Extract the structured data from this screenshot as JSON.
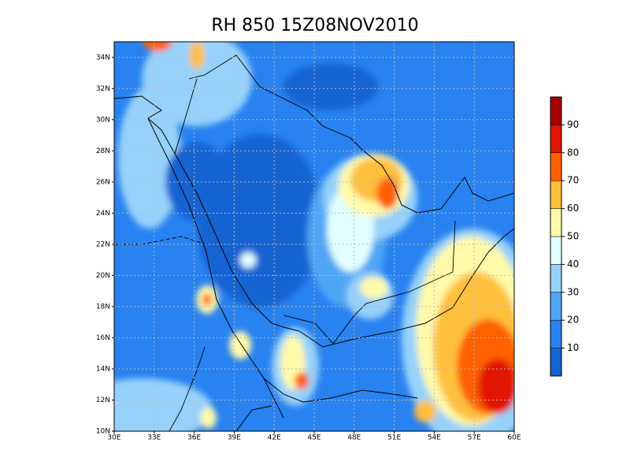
{
  "title": "RH 850 15Z08NOV2010",
  "map": {
    "xlim": [
      30,
      60
    ],
    "ylim": [
      10,
      35
    ],
    "xticks": [
      {
        "value": 30,
        "label": "30E"
      },
      {
        "value": 33,
        "label": "33E"
      },
      {
        "value": 36,
        "label": "36E"
      },
      {
        "value": 39,
        "label": "39E"
      },
      {
        "value": 42,
        "label": "42E"
      },
      {
        "value": 45,
        "label": "45E"
      },
      {
        "value": 48,
        "label": "48E"
      },
      {
        "value": 51,
        "label": "51E"
      },
      {
        "value": 54,
        "label": "54E"
      },
      {
        "value": 57,
        "label": "57E"
      },
      {
        "value": 60,
        "label": "60E"
      }
    ],
    "yticks": [
      {
        "value": 10,
        "label": "10N"
      },
      {
        "value": 12,
        "label": "12N"
      },
      {
        "value": 14,
        "label": "14N"
      },
      {
        "value": 16,
        "label": "16N"
      },
      {
        "value": 18,
        "label": "18N"
      },
      {
        "value": 20,
        "label": "20N"
      },
      {
        "value": 22,
        "label": "22N"
      },
      {
        "value": 24,
        "label": "24N"
      },
      {
        "value": 26,
        "label": "26N"
      },
      {
        "value": 28,
        "label": "28N"
      },
      {
        "value": 30,
        "label": "30N"
      },
      {
        "value": 32,
        "label": "32N"
      },
      {
        "value": 34,
        "label": "34N"
      }
    ],
    "grid": true
  },
  "colorbar": {
    "levels": [
      10,
      20,
      30,
      40,
      50,
      60,
      70,
      80,
      90
    ],
    "colors": [
      "#1464d2",
      "#2882f0",
      "#50a5f5",
      "#96d2fa",
      "#e1ffff",
      "#fffaaa",
      "#ffc03c",
      "#ff6000",
      "#e11400",
      "#a50000"
    ]
  }
}
